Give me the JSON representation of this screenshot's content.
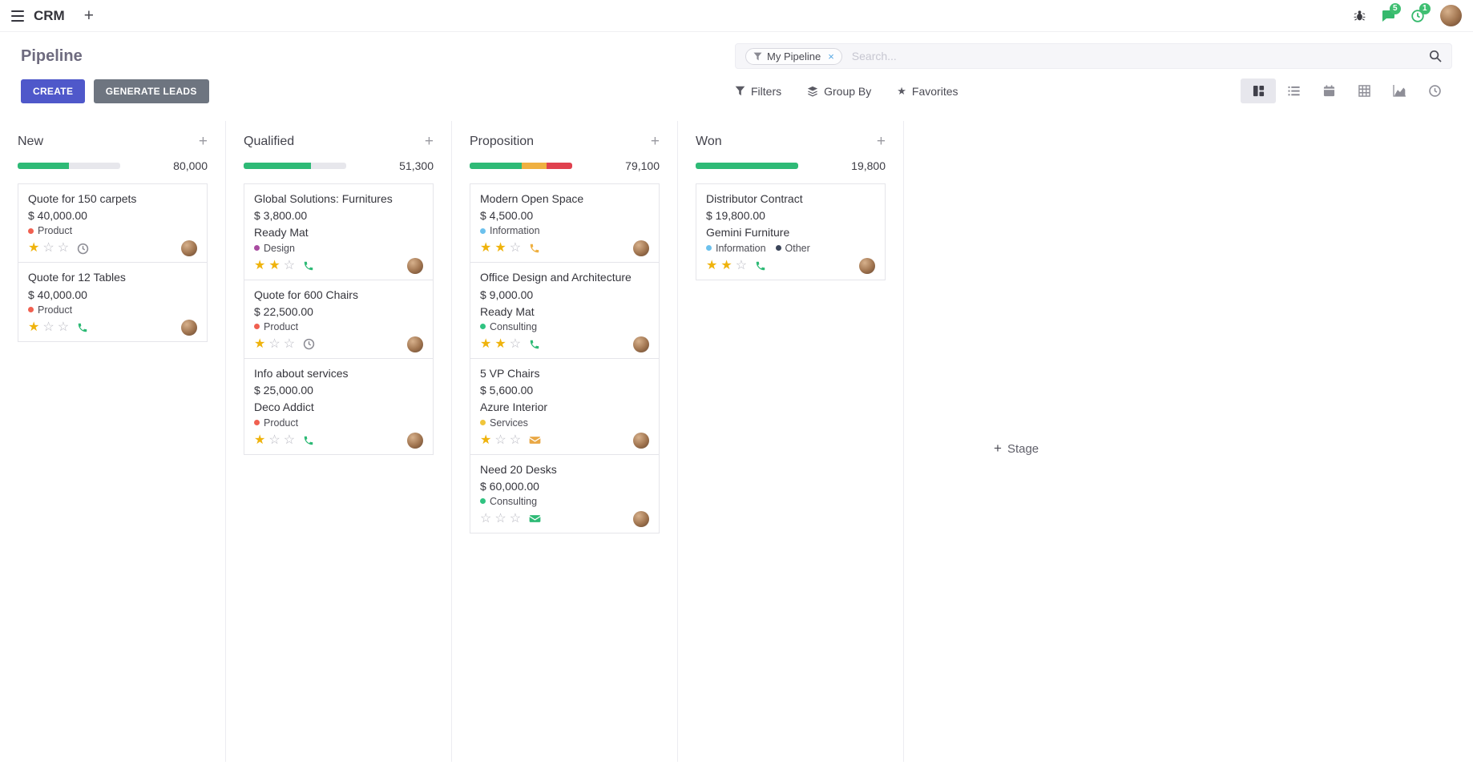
{
  "navbar": {
    "app_name": "CRM",
    "messages_badge": "5",
    "activities_badge": "1"
  },
  "control_panel": {
    "title": "Pipeline",
    "buttons": {
      "create": "CREATE",
      "generate_leads": "GENERATE LEADS"
    },
    "search": {
      "facet_label": "My Pipeline",
      "facet_remove": "×",
      "placeholder": "Search..."
    },
    "menus": {
      "filters": "Filters",
      "group_by": "Group By",
      "favorites": "Favorites"
    }
  },
  "board": {
    "add_column_label": "Stage",
    "columns": [
      {
        "name": "New",
        "total": "80,000",
        "progress": [
          {
            "color": "#2eba76",
            "pct": 50
          }
        ],
        "cards": [
          {
            "title": "Quote for 150 carpets",
            "amount": "$ 40,000.00",
            "tags": [
              {
                "label": "Product",
                "color": "#f06050"
              }
            ],
            "stars": 1,
            "activity": {
              "icon": "clock",
              "color": "#8b8b93"
            }
          },
          {
            "title": "Quote for 12 Tables",
            "amount": "$ 40,000.00",
            "tags": [
              {
                "label": "Product",
                "color": "#f06050"
              }
            ],
            "stars": 1,
            "activity": {
              "icon": "phone",
              "color": "#2eba76"
            }
          }
        ]
      },
      {
        "name": "Qualified",
        "total": "51,300",
        "progress": [
          {
            "color": "#2eba76",
            "pct": 66
          }
        ],
        "cards": [
          {
            "title": "Global Solutions: Furnitures",
            "amount": "$ 3,800.00",
            "partner": "Ready Mat",
            "tags": [
              {
                "label": "Design",
                "color": "#a94ca1"
              }
            ],
            "stars": 2,
            "activity": {
              "icon": "phone",
              "color": "#2eba76"
            }
          },
          {
            "title": "Quote for 600 Chairs",
            "amount": "$ 22,500.00",
            "tags": [
              {
                "label": "Product",
                "color": "#f06050"
              }
            ],
            "stars": 1,
            "activity": {
              "icon": "clock",
              "color": "#8b8b93"
            }
          },
          {
            "title": "Info about services",
            "amount": "$ 25,000.00",
            "partner": "Deco Addict",
            "tags": [
              {
                "label": "Product",
                "color": "#f06050"
              }
            ],
            "stars": 1,
            "activity": {
              "icon": "phone",
              "color": "#2eba76"
            }
          }
        ]
      },
      {
        "name": "Proposition",
        "total": "79,100",
        "progress": [
          {
            "color": "#2eba76",
            "pct": 51
          },
          {
            "color": "#efb041",
            "pct": 24
          },
          {
            "color": "#e0414e",
            "pct": 25
          }
        ],
        "cards": [
          {
            "title": "Modern Open Space",
            "amount": "$ 4,500.00",
            "tags": [
              {
                "label": "Information",
                "color": "#6cc1ed"
              }
            ],
            "stars": 2,
            "activity": {
              "icon": "phone",
              "color": "#efb041"
            }
          },
          {
            "title": "Office Design and Architecture",
            "amount": "$ 9,000.00",
            "partner": "Ready Mat",
            "tags": [
              {
                "label": "Consulting",
                "color": "#30c381"
              }
            ],
            "stars": 2,
            "activity": {
              "icon": "phone",
              "color": "#2eba76"
            }
          },
          {
            "title": "5 VP Chairs",
            "amount": "$ 5,600.00",
            "partner": "Azure Interior",
            "tags": [
              {
                "label": "Services",
                "color": "#f0c53a"
              }
            ],
            "stars": 1,
            "activity": {
              "icon": "envelope",
              "color": "#e9a845"
            }
          },
          {
            "title": "Need 20 Desks",
            "amount": "$ 60,000.00",
            "tags": [
              {
                "label": "Consulting",
                "color": "#30c381"
              }
            ],
            "stars": 0,
            "activity": {
              "icon": "envelope",
              "color": "#2eba76"
            }
          }
        ]
      },
      {
        "name": "Won",
        "total": "19,800",
        "progress": [
          {
            "color": "#2eba76",
            "pct": 100
          }
        ],
        "cards": [
          {
            "title": "Distributor Contract",
            "amount": "$ 19,800.00",
            "partner": "Gemini Furniture",
            "tags": [
              {
                "label": "Information",
                "color": "#6cc1ed"
              },
              {
                "label": "Other",
                "color": "#3b4559"
              }
            ],
            "stars": 2,
            "activity": {
              "icon": "phone",
              "color": "#2eba76"
            }
          }
        ]
      }
    ]
  }
}
